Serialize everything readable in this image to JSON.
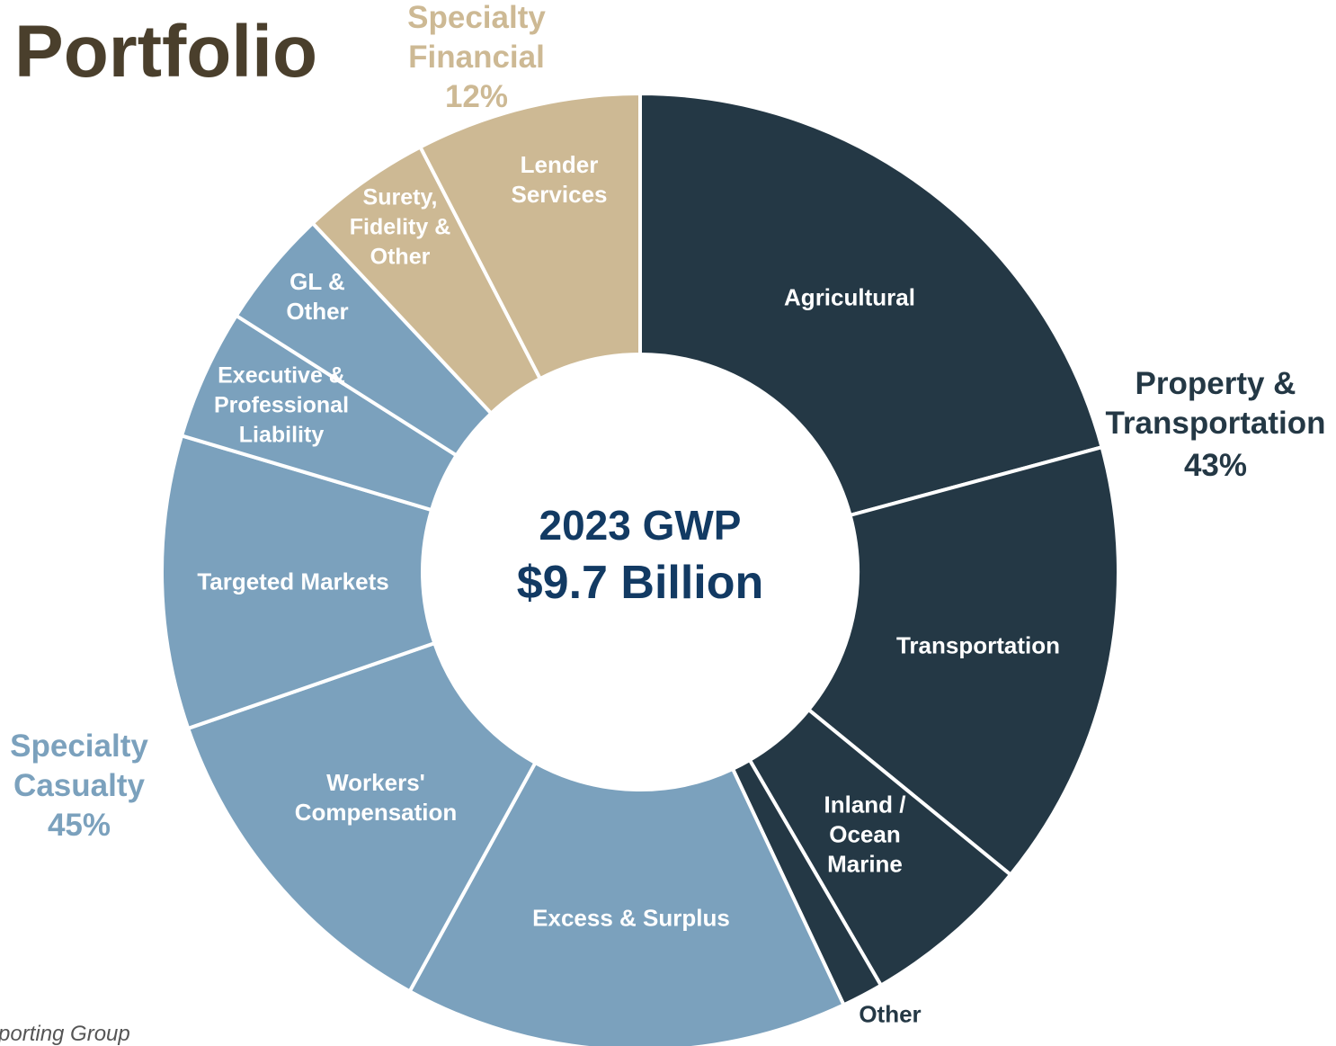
{
  "chart_data": {
    "type": "donut",
    "title": "Portfolio",
    "center_label": [
      "2023 GWP",
      "$9.7 Billion"
    ],
    "categories": [
      "Agricultural",
      "Transportation",
      "Inland / Ocean Marine",
      "Other",
      "Excess & Surplus",
      "Workers' Compensation",
      "Targeted Markets",
      "Executive & Professional Liability",
      "GL & Other",
      "Surety, Fidelity & Other",
      "Lender Services"
    ],
    "values": [
      20.8,
      15.1,
      5.7,
      1.4,
      15.0,
      11.7,
      9.9,
      4.4,
      4.0,
      4.4,
      7.6
    ],
    "colors": [
      "#243845",
      "#243845",
      "#243845",
      "#243845",
      "#7ba1bd",
      "#7ba1bd",
      "#7ba1bd",
      "#7ba1bd",
      "#7ba1bd",
      "#cdb994",
      "#cdb994"
    ],
    "groups": [
      {
        "name": "Property & Transportation",
        "value": 43,
        "value_label": "43%",
        "color": "#243845"
      },
      {
        "name": "Specialty Casualty",
        "value": 45,
        "value_label": "45%",
        "color": "#7ba1bd"
      },
      {
        "name": "Specialty Financial",
        "value": 12,
        "value_label": "12%",
        "color": "#cdb994"
      }
    ],
    "footnote": "porting Group"
  }
}
